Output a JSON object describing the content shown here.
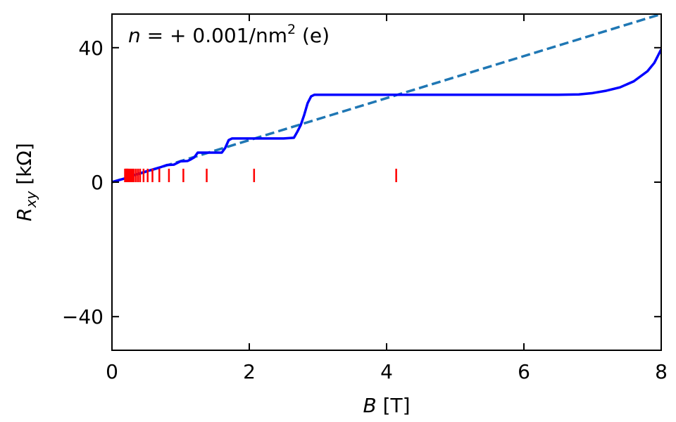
{
  "chart_data": {
    "type": "line",
    "annotation": {
      "var": "n",
      "eq": " = ",
      "value": "+ 0.001/nm",
      "sup": "2",
      "suffix": " (e)"
    },
    "xlabel": {
      "var": "B",
      "unit": " [T]"
    },
    "ylabel": {
      "var": "R",
      "sub": "xy",
      "unit": " [kΩ]"
    },
    "xlim": [
      0,
      8
    ],
    "ylim": [
      -50,
      50
    ],
    "xticks": [
      0,
      2,
      4,
      6,
      8
    ],
    "xtick_labels": [
      "0",
      "2",
      "4",
      "6",
      "8"
    ],
    "yticks": [
      -40,
      0,
      40
    ],
    "ytick_labels": [
      "−40",
      "0",
      "40"
    ],
    "grid": false,
    "series": [
      {
        "style": "dashed",
        "color": "#1f77b4",
        "x": [
          0,
          8
        ],
        "y": [
          0,
          50
        ]
      },
      {
        "style": "solid",
        "color": "#0000ff",
        "x": [
          0,
          0.2,
          0.4,
          0.6,
          0.7,
          0.8,
          0.9,
          1.0,
          1.1,
          1.15,
          1.2,
          1.25,
          1.3,
          1.6,
          1.65,
          1.7,
          1.75,
          2.0,
          2.5,
          2.65,
          2.7,
          2.75,
          2.8,
          2.85,
          2.9,
          2.95,
          3.0,
          3.5,
          4.0,
          5.0,
          6.0,
          6.5,
          6.8,
          7.0,
          7.2,
          7.4,
          7.6,
          7.8,
          7.9,
          8.0
        ],
        "y": [
          0,
          1.2,
          2.6,
          3.8,
          4.4,
          5.1,
          5.2,
          6.2,
          6.3,
          6.8,
          7.4,
          8.8,
          8.8,
          8.8,
          10.2,
          12.5,
          13.0,
          13.0,
          13.0,
          13.2,
          15.0,
          17.0,
          20.0,
          23.5,
          25.5,
          26.0,
          26.0,
          26.0,
          26.0,
          26.0,
          26.0,
          26.0,
          26.1,
          26.5,
          27.2,
          28.2,
          30.0,
          33.0,
          35.5,
          39.5
        ]
      }
    ],
    "markers": {
      "color": "#ff0000",
      "x": [
        4.14,
        2.07,
        1.38,
        1.04,
        0.83,
        0.69,
        0.59,
        0.52,
        0.46,
        0.41,
        0.38,
        0.35,
        0.32,
        0.3,
        0.28,
        0.26,
        0.24,
        0.23,
        0.22,
        0.21,
        0.2,
        0.19
      ],
      "y_low": 0,
      "y_high": 4
    }
  }
}
